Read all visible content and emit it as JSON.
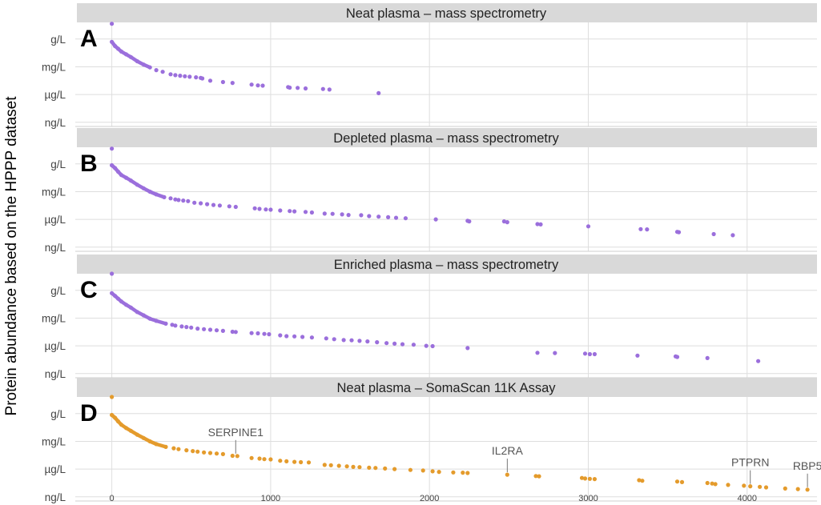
{
  "y_axis_label": "Protein abundance based on the HPPP dataset",
  "colors": {
    "ms": "#9b6fdc",
    "somascan": "#e49b2c",
    "strip": "#d9d9d9",
    "grid": "#dedede"
  },
  "chart_data": {
    "type": "scatter",
    "x_ticks": [
      "0",
      "1000",
      "2000",
      "3000",
      "4000"
    ],
    "xlim": [
      -230,
      4440
    ],
    "y_ticks": [
      "g/L",
      "mg/L",
      "µg/L",
      "ng/L"
    ],
    "y_tick_values": [
      3,
      2,
      1,
      0
    ],
    "ylim": [
      -0.15,
      3.6
    ],
    "panels": [
      {
        "letter": "A",
        "title": "Neat plasma – mass spectrometry",
        "color": "ms",
        "curve_end": 240,
        "points": [
          [
            0,
            3.55
          ],
          [
            0,
            2.9
          ],
          [
            20,
            2.75
          ],
          [
            40,
            2.65
          ],
          [
            60,
            2.55
          ],
          [
            90,
            2.45
          ],
          [
            120,
            2.35
          ],
          [
            160,
            2.2
          ],
          [
            200,
            2.08
          ],
          [
            240,
            1.98
          ],
          [
            280,
            1.88
          ],
          [
            320,
            1.82
          ],
          [
            370,
            1.73
          ],
          [
            400,
            1.7
          ],
          [
            430,
            1.68
          ],
          [
            460,
            1.66
          ],
          [
            490,
            1.64
          ],
          [
            530,
            1.62
          ],
          [
            560,
            1.6
          ],
          [
            570,
            1.58
          ],
          [
            620,
            1.5
          ],
          [
            700,
            1.45
          ],
          [
            760,
            1.42
          ],
          [
            880,
            1.36
          ],
          [
            920,
            1.33
          ],
          [
            950,
            1.32
          ],
          [
            1110,
            1.27
          ],
          [
            1120,
            1.25
          ],
          [
            1170,
            1.24
          ],
          [
            1220,
            1.22
          ],
          [
            1330,
            1.2
          ],
          [
            1370,
            1.18
          ],
          [
            1680,
            1.05
          ]
        ],
        "annotations": []
      },
      {
        "letter": "B",
        "title": "Depleted plasma – mass spectrometry",
        "color": "ms",
        "curve_end": 330,
        "points": [
          [
            0,
            3.55
          ],
          [
            0,
            2.95
          ],
          [
            20,
            2.85
          ],
          [
            40,
            2.72
          ],
          [
            60,
            2.6
          ],
          [
            90,
            2.5
          ],
          [
            120,
            2.4
          ],
          [
            160,
            2.25
          ],
          [
            200,
            2.12
          ],
          [
            240,
            2.0
          ],
          [
            280,
            1.9
          ],
          [
            330,
            1.8
          ],
          [
            370,
            1.76
          ],
          [
            400,
            1.72
          ],
          [
            420,
            1.7
          ],
          [
            450,
            1.68
          ],
          [
            480,
            1.66
          ],
          [
            520,
            1.6
          ],
          [
            560,
            1.58
          ],
          [
            600,
            1.55
          ],
          [
            640,
            1.52
          ],
          [
            680,
            1.5
          ],
          [
            740,
            1.47
          ],
          [
            780,
            1.45
          ],
          [
            900,
            1.4
          ],
          [
            930,
            1.38
          ],
          [
            970,
            1.36
          ],
          [
            1000,
            1.35
          ],
          [
            1060,
            1.32
          ],
          [
            1120,
            1.3
          ],
          [
            1150,
            1.29
          ],
          [
            1220,
            1.27
          ],
          [
            1260,
            1.25
          ],
          [
            1340,
            1.21
          ],
          [
            1390,
            1.2
          ],
          [
            1450,
            1.18
          ],
          [
            1490,
            1.16
          ],
          [
            1570,
            1.15
          ],
          [
            1620,
            1.12
          ],
          [
            1680,
            1.1
          ],
          [
            1740,
            1.08
          ],
          [
            1790,
            1.06
          ],
          [
            1850,
            1.04
          ],
          [
            2040,
            1.0
          ],
          [
            2240,
            0.95
          ],
          [
            2250,
            0.93
          ],
          [
            2470,
            0.93
          ],
          [
            2490,
            0.9
          ],
          [
            2680,
            0.83
          ],
          [
            2700,
            0.82
          ],
          [
            3000,
            0.75
          ],
          [
            3330,
            0.65
          ],
          [
            3370,
            0.64
          ],
          [
            3560,
            0.55
          ],
          [
            3570,
            0.54
          ],
          [
            3790,
            0.47
          ],
          [
            3910,
            0.43
          ]
        ],
        "annotations": []
      },
      {
        "letter": "C",
        "title": "Enriched plasma – mass spectrometry",
        "color": "ms",
        "curve_end": 340,
        "points": [
          [
            0,
            3.6
          ],
          [
            0,
            2.9
          ],
          [
            20,
            2.8
          ],
          [
            40,
            2.7
          ],
          [
            60,
            2.6
          ],
          [
            90,
            2.48
          ],
          [
            120,
            2.38
          ],
          [
            160,
            2.22
          ],
          [
            200,
            2.1
          ],
          [
            240,
            1.98
          ],
          [
            280,
            1.9
          ],
          [
            340,
            1.8
          ],
          [
            380,
            1.76
          ],
          [
            400,
            1.73
          ],
          [
            440,
            1.7
          ],
          [
            470,
            1.68
          ],
          [
            500,
            1.66
          ],
          [
            540,
            1.62
          ],
          [
            580,
            1.6
          ],
          [
            620,
            1.58
          ],
          [
            660,
            1.56
          ],
          [
            700,
            1.54
          ],
          [
            760,
            1.51
          ],
          [
            780,
            1.5
          ],
          [
            880,
            1.46
          ],
          [
            920,
            1.45
          ],
          [
            960,
            1.43
          ],
          [
            990,
            1.42
          ],
          [
            1060,
            1.38
          ],
          [
            1100,
            1.35
          ],
          [
            1150,
            1.34
          ],
          [
            1200,
            1.32
          ],
          [
            1260,
            1.3
          ],
          [
            1350,
            1.27
          ],
          [
            1400,
            1.24
          ],
          [
            1460,
            1.21
          ],
          [
            1510,
            1.2
          ],
          [
            1560,
            1.18
          ],
          [
            1610,
            1.16
          ],
          [
            1670,
            1.13
          ],
          [
            1730,
            1.1
          ],
          [
            1780,
            1.08
          ],
          [
            1830,
            1.06
          ],
          [
            1900,
            1.04
          ],
          [
            1980,
            1.0
          ],
          [
            2020,
            0.99
          ],
          [
            2240,
            0.92
          ],
          [
            2680,
            0.75
          ],
          [
            2790,
            0.74
          ],
          [
            2980,
            0.72
          ],
          [
            3010,
            0.7
          ],
          [
            3040,
            0.7
          ],
          [
            3310,
            0.65
          ],
          [
            3550,
            0.62
          ],
          [
            3560,
            0.6
          ],
          [
            3750,
            0.56
          ],
          [
            4070,
            0.45
          ]
        ],
        "annotations": []
      },
      {
        "letter": "D",
        "title": "Neat plasma – SomaScan 11K Assay",
        "color": "somascan",
        "curve_end": 340,
        "points": [
          [
            0,
            3.6
          ],
          [
            0,
            2.95
          ],
          [
            20,
            2.85
          ],
          [
            40,
            2.72
          ],
          [
            60,
            2.6
          ],
          [
            90,
            2.48
          ],
          [
            120,
            2.38
          ],
          [
            160,
            2.24
          ],
          [
            200,
            2.12
          ],
          [
            240,
            2.0
          ],
          [
            280,
            1.9
          ],
          [
            340,
            1.8
          ],
          [
            390,
            1.75
          ],
          [
            420,
            1.72
          ],
          [
            470,
            1.68
          ],
          [
            510,
            1.65
          ],
          [
            540,
            1.63
          ],
          [
            580,
            1.6
          ],
          [
            620,
            1.58
          ],
          [
            660,
            1.56
          ],
          [
            700,
            1.54
          ],
          [
            760,
            1.48
          ],
          [
            790,
            1.47
          ],
          [
            880,
            1.4
          ],
          [
            930,
            1.38
          ],
          [
            960,
            1.36
          ],
          [
            1000,
            1.35
          ],
          [
            1060,
            1.3
          ],
          [
            1100,
            1.28
          ],
          [
            1150,
            1.26
          ],
          [
            1190,
            1.25
          ],
          [
            1240,
            1.24
          ],
          [
            1340,
            1.15
          ],
          [
            1380,
            1.14
          ],
          [
            1430,
            1.12
          ],
          [
            1480,
            1.1
          ],
          [
            1520,
            1.08
          ],
          [
            1560,
            1.07
          ],
          [
            1620,
            1.05
          ],
          [
            1660,
            1.04
          ],
          [
            1720,
            1.02
          ],
          [
            1780,
            1.0
          ],
          [
            1880,
            0.97
          ],
          [
            1960,
            0.95
          ],
          [
            2020,
            0.92
          ],
          [
            2060,
            0.9
          ],
          [
            2150,
            0.88
          ],
          [
            2210,
            0.87
          ],
          [
            2240,
            0.86
          ],
          [
            2490,
            0.8
          ],
          [
            2670,
            0.75
          ],
          [
            2690,
            0.74
          ],
          [
            2960,
            0.68
          ],
          [
            2980,
            0.66
          ],
          [
            3010,
            0.65
          ],
          [
            3040,
            0.64
          ],
          [
            3320,
            0.6
          ],
          [
            3340,
            0.58
          ],
          [
            3560,
            0.55
          ],
          [
            3590,
            0.53
          ],
          [
            3750,
            0.5
          ],
          [
            3780,
            0.48
          ],
          [
            3800,
            0.46
          ],
          [
            3880,
            0.43
          ],
          [
            3980,
            0.4
          ],
          [
            4020,
            0.38
          ],
          [
            4080,
            0.36
          ],
          [
            4120,
            0.34
          ],
          [
            4240,
            0.3
          ],
          [
            4320,
            0.28
          ],
          [
            4380,
            0.26
          ]
        ],
        "annotations": [
          {
            "label": "SERPINE1",
            "x": 780,
            "y": 1.47
          },
          {
            "label": "IL2RA",
            "x": 2490,
            "y": 0.8
          },
          {
            "label": "PTPRN",
            "x": 4020,
            "y": 0.38
          },
          {
            "label": "RBP5",
            "x": 4380,
            "y": 0.26
          }
        ]
      }
    ]
  }
}
